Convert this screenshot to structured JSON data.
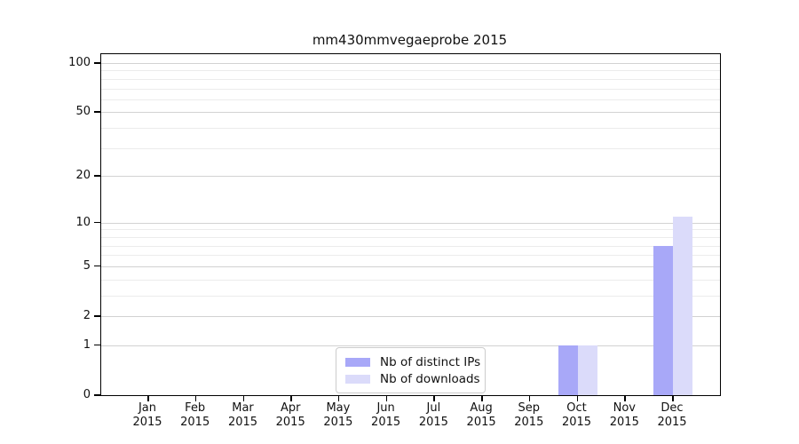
{
  "title": "mm430mmvegaeprobe 2015",
  "chart_data": {
    "type": "bar",
    "title": "mm430mmvegaeprobe 2015",
    "xlabel": "",
    "ylabel": "",
    "categories": [
      "Jan 2015",
      "Feb 2015",
      "Mar 2015",
      "Apr 2015",
      "May 2015",
      "Jun 2015",
      "Jul 2015",
      "Aug 2015",
      "Sep 2015",
      "Oct 2015",
      "Nov 2015",
      "Dec 2015"
    ],
    "x_tick_lines": [
      {
        "line1": "Jan",
        "line2": "2015"
      },
      {
        "line1": "Feb",
        "line2": "2015"
      },
      {
        "line1": "Mar",
        "line2": "2015"
      },
      {
        "line1": "Apr",
        "line2": "2015"
      },
      {
        "line1": "May",
        "line2": "2015"
      },
      {
        "line1": "Jun",
        "line2": "2015"
      },
      {
        "line1": "Jul",
        "line2": "2015"
      },
      {
        "line1": "Aug",
        "line2": "2015"
      },
      {
        "line1": "Sep",
        "line2": "2015"
      },
      {
        "line1": "Oct",
        "line2": "2015"
      },
      {
        "line1": "Nov",
        "line2": "2015"
      },
      {
        "line1": "Dec",
        "line2": "2015"
      }
    ],
    "series": [
      {
        "name": "Nb of distinct IPs",
        "color": "#a8a8f8",
        "values": [
          0,
          0,
          0,
          0,
          0,
          0,
          0,
          0,
          0,
          1,
          0,
          7
        ]
      },
      {
        "name": "Nb of downloads",
        "color": "#dbdbfa",
        "values": [
          0,
          0,
          0,
          0,
          0,
          0,
          0,
          0,
          0,
          1,
          0,
          11
        ]
      }
    ],
    "yscale": "log1p",
    "ylim": [
      0,
      113
    ],
    "y_major_ticks": [
      0,
      1,
      2,
      5,
      10,
      20,
      50,
      100
    ],
    "y_minor_ticks": [
      3,
      4,
      6,
      7,
      8,
      9,
      30,
      40,
      60,
      70,
      80,
      90
    ],
    "grid": "horizontal",
    "legend_position": "bottom-center"
  },
  "legend": {
    "items": [
      {
        "label": "Nb of distinct IPs",
        "color": "#a8a8f8"
      },
      {
        "label": "Nb of downloads",
        "color": "#dbdbfa"
      }
    ]
  }
}
